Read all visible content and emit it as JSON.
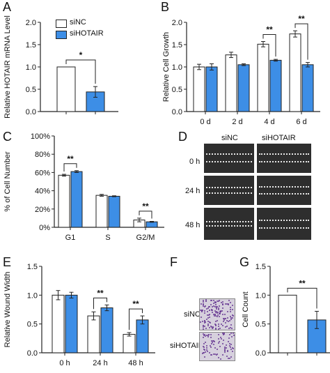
{
  "panels": {
    "A": "A",
    "B": "B",
    "C": "C",
    "D": "D",
    "E": "E",
    "F": "F",
    "G": "G"
  },
  "legend": {
    "series1": "siNC",
    "series2": "siHOTAIR",
    "series1_color": "#ffffff",
    "series2_color": "#3d8ee6"
  },
  "wound": {
    "col1": "siNC",
    "col2": "siHOTAIR",
    "rows": [
      "0 h",
      "24 h",
      "48 h"
    ]
  },
  "transwell": {
    "row1": "siNC",
    "row2": "siHOTAIR"
  },
  "chart_data": [
    {
      "panel": "A",
      "type": "bar",
      "ylabel": "Relative HOTAIR mRNA Level",
      "ylim": [
        0,
        2.0
      ],
      "yticks": [
        "0.0",
        "0.5",
        "1.0",
        "1.5",
        "2.0"
      ],
      "categories": [
        ""
      ],
      "series": [
        {
          "name": "siNC",
          "values": [
            1.0
          ],
          "errors": [
            0.0
          ]
        },
        {
          "name": "siHOTAIR",
          "values": [
            0.44
          ],
          "errors": [
            0.12
          ]
        }
      ],
      "annotations": [
        {
          "text": "*",
          "between": [
            "siNC",
            "siHOTAIR"
          ]
        }
      ]
    },
    {
      "panel": "B",
      "type": "bar",
      "ylabel": "Relative Cell Growth",
      "ylim": [
        0,
        2.0
      ],
      "yticks": [
        "0.0",
        "0.5",
        "1.0",
        "1.5",
        "2.0"
      ],
      "categories": [
        "0 d",
        "2 d",
        "4 d",
        "6 d"
      ],
      "series": [
        {
          "name": "siNC",
          "values": [
            1.0,
            1.27,
            1.51,
            1.74
          ],
          "errors": [
            0.06,
            0.06,
            0.06,
            0.07
          ]
        },
        {
          "name": "siHOTAIR",
          "values": [
            1.0,
            1.05,
            1.15,
            1.05
          ],
          "errors": [
            0.07,
            0.02,
            0.02,
            0.05
          ]
        }
      ],
      "annotations": [
        {
          "text": "**",
          "category": "4 d"
        },
        {
          "text": "**",
          "category": "6 d"
        }
      ]
    },
    {
      "panel": "C",
      "type": "bar",
      "ylabel": "% of Cell Number",
      "ylim": [
        0,
        100
      ],
      "yticks": [
        "0%",
        "20%",
        "40%",
        "60%",
        "80%",
        "100%"
      ],
      "categories": [
        "G1",
        "S",
        "G2/M"
      ],
      "series": [
        {
          "name": "siNC",
          "values": [
            57,
            35,
            8
          ],
          "errors": [
            1,
            1,
            2
          ]
        },
        {
          "name": "siHOTAIR",
          "values": [
            61,
            34,
            6
          ],
          "errors": [
            1,
            0.5,
            0.5
          ]
        }
      ],
      "annotations": [
        {
          "text": "**",
          "category": "G1"
        },
        {
          "text": "**",
          "category": "G2/M"
        }
      ]
    },
    {
      "panel": "E",
      "type": "bar",
      "ylabel": "Relative Wound Width",
      "ylim": [
        0,
        1.5
      ],
      "yticks": [
        "0.0",
        "0.5",
        "1.0",
        "1.5"
      ],
      "categories": [
        "0 h",
        "24 h",
        "48 h"
      ],
      "series": [
        {
          "name": "siNC",
          "values": [
            1.0,
            0.64,
            0.32
          ],
          "errors": [
            0.08,
            0.07,
            0.03
          ]
        },
        {
          "name": "siHOTAIR",
          "values": [
            1.0,
            0.78,
            0.57
          ],
          "errors": [
            0.05,
            0.05,
            0.07
          ]
        }
      ],
      "annotations": [
        {
          "text": "**",
          "category": "24 h"
        },
        {
          "text": "**",
          "category": "48 h"
        }
      ]
    },
    {
      "panel": "G",
      "type": "bar",
      "ylabel": "Cell  Count",
      "ylim": [
        0,
        1.5
      ],
      "yticks": [
        "0.0",
        "0.5",
        "1.0",
        "1.5"
      ],
      "categories": [
        ""
      ],
      "series": [
        {
          "name": "siNC",
          "values": [
            1.0
          ],
          "errors": [
            0.0
          ]
        },
        {
          "name": "siHOTAIR",
          "values": [
            0.57
          ],
          "errors": [
            0.15
          ]
        }
      ],
      "annotations": [
        {
          "text": "**",
          "between": [
            "siNC",
            "siHOTAIR"
          ]
        }
      ]
    }
  ]
}
